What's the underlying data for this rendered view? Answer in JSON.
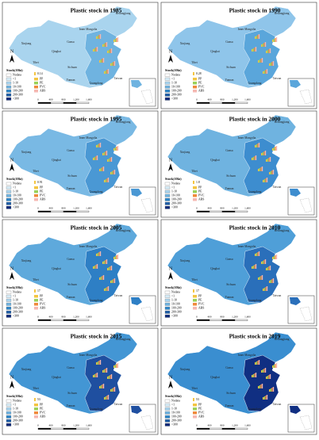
{
  "north": "N",
  "panels": [
    {
      "title": "Plastic stock in 1985",
      "legend_value": "0.14",
      "region_colors": [
        "#a9d4ee",
        "#6fb3e0"
      ]
    },
    {
      "title": "Plastic stock in 1990",
      "legend_value": "0.28",
      "region_colors": [
        "#8fc5ea",
        "#5aa6db"
      ]
    },
    {
      "title": "Plastic stock in 1995",
      "legend_value": "0.91",
      "region_colors": [
        "#79b9e4",
        "#4a98d4"
      ]
    },
    {
      "title": "Plastic stock in 2000",
      "legend_value": "1.8",
      "region_colors": [
        "#6fb3e0",
        "#3d8dcf"
      ]
    },
    {
      "title": "Plastic stock in 2005",
      "legend_value": "17",
      "region_colors": [
        "#5ea9dc",
        "#2e7fc5"
      ]
    },
    {
      "title": "Plastic stock in 2010",
      "legend_value": "17",
      "region_colors": [
        "#4f9fd8",
        "#2a6fba"
      ]
    },
    {
      "title": "Plastic stock in 2015",
      "legend_value": "53",
      "region_colors": [
        "#4396d4",
        "#1f4fa0"
      ]
    },
    {
      "title": "Plastic stock in 2019",
      "legend_value": "53",
      "region_colors": [
        "#3a8ed0",
        "#102f82"
      ]
    }
  ],
  "legend": {
    "title": "Stock(10kt)",
    "classes": [
      {
        "label": "Nodata",
        "color": "#ffffff"
      },
      {
        "label": "<1",
        "color": "#d6ecf7"
      },
      {
        "label": "1-10",
        "color": "#a9d4ee"
      },
      {
        "label": "10-100",
        "color": "#6fb3e0"
      },
      {
        "label": "100-200",
        "color": "#2e86c9"
      },
      {
        "label": "200-300",
        "color": "#1f5fa8"
      },
      {
        "label": ">300",
        "color": "#0c2a7a"
      }
    ],
    "polymers": [
      {
        "label": "PP",
        "color": "#f4c542"
      },
      {
        "label": "PE",
        "color": "#9bd15a"
      },
      {
        "label": "PVC",
        "color": "#f08a3c"
      },
      {
        "label": "ABS",
        "color": "#f5b7b1"
      }
    ]
  },
  "scale": [
    "0",
    "400",
    "800",
    "1,200",
    "1,600"
  ],
  "places": [
    {
      "label": "Xinjiang"
    },
    {
      "label": "Tibet"
    },
    {
      "label": "Qinghai"
    },
    {
      "label": "Gansu"
    },
    {
      "label": "Inner Mongolia"
    },
    {
      "label": "Heilongjiang"
    },
    {
      "label": "Sichuan"
    },
    {
      "label": "Yunnan"
    },
    {
      "label": "Guangdong"
    },
    {
      "label": "Taiwan"
    }
  ]
}
